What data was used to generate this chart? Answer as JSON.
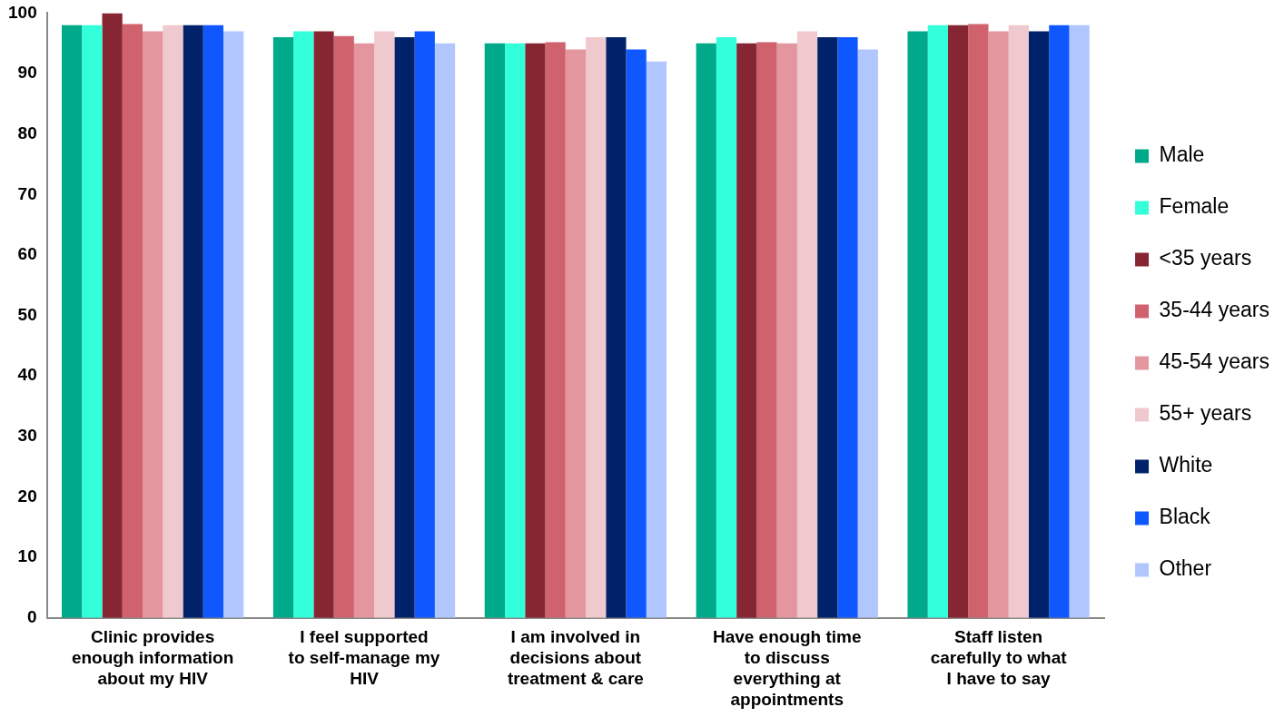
{
  "chart_data": {
    "type": "bar",
    "categories": [
      "Clinic provides enough information about my HIV",
      "I feel supported to self-manage my HIV",
      "I am involved in decisions about treatment & care",
      "Have enough time to discuss everything at appointments",
      "Staff listen carefully to what I have to say"
    ],
    "series": [
      {
        "name": "Male",
        "color": "#00a98a",
        "values": [
          98,
          96,
          95,
          95,
          97
        ]
      },
      {
        "name": "Female",
        "color": "#33ffdb",
        "values": [
          98,
          97,
          95,
          96,
          98
        ]
      },
      {
        "name": "<35 years",
        "color": "#862633",
        "values": [
          100,
          97,
          95,
          95,
          98
        ]
      },
      {
        "name": "35-44 years",
        "color": "#d0626e",
        "values": [
          98.2,
          96.2,
          95.2,
          95.2,
          98.2
        ]
      },
      {
        "name": "45-54 years",
        "color": "#e3969e",
        "values": [
          97,
          95,
          94,
          95,
          97
        ]
      },
      {
        "name": "55+ years",
        "color": "#f0c9ce",
        "values": [
          98,
          97,
          96,
          97,
          98
        ]
      },
      {
        "name": "White",
        "color": "#00226a",
        "values": [
          98,
          96,
          96,
          96,
          97
        ]
      },
      {
        "name": "Black",
        "color": "#0f57ff",
        "values": [
          98,
          97,
          94,
          96,
          98
        ]
      },
      {
        "name": "Other",
        "color": "#b0c6fd",
        "values": [
          97,
          95,
          92,
          94,
          98
        ]
      }
    ],
    "ylim": [
      0,
      100
    ],
    "yticks": [
      0,
      10,
      20,
      30,
      40,
      50,
      60,
      70,
      80,
      90,
      100
    ],
    "grid": false,
    "legend": "right"
  }
}
